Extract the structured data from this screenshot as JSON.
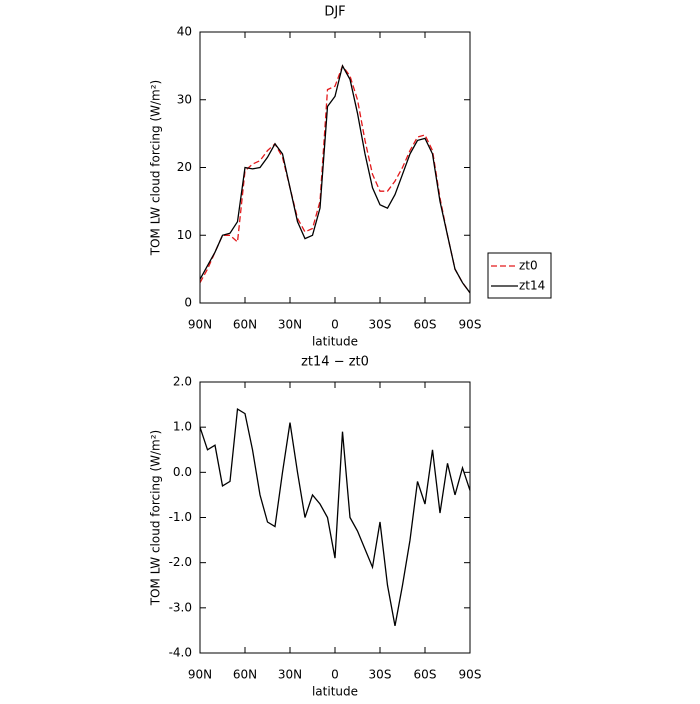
{
  "chart_data": [
    {
      "type": "line",
      "title": "DJF",
      "xlabel": "latitude",
      "ylabel": "TOM LW cloud forcing (W/m²)",
      "x": [
        90,
        85,
        80,
        75,
        70,
        65,
        60,
        55,
        50,
        45,
        40,
        35,
        30,
        25,
        20,
        15,
        10,
        5,
        0,
        -5,
        -10,
        -15,
        -20,
        -25,
        -30,
        -35,
        -40,
        -45,
        -50,
        -55,
        -60,
        -65,
        -70,
        -75,
        -80,
        -85,
        -90
      ],
      "xlim": [
        90,
        -90
      ],
      "xticks": [
        {
          "value": 90,
          "label": "90N"
        },
        {
          "value": 60,
          "label": "60N"
        },
        {
          "value": 30,
          "label": "30N"
        },
        0,
        {
          "value": -30,
          "label": "30S"
        },
        {
          "value": -60,
          "label": "60S"
        },
        {
          "value": -90,
          "label": "90S"
        }
      ],
      "ylim": [
        0,
        40
      ],
      "yticks": [
        0,
        10,
        20,
        30,
        40
      ],
      "legend": "right",
      "series": [
        {
          "name": "zt0",
          "color": "#e31a1c",
          "style": "dashed",
          "values": [
            3,
            5,
            7.5,
            10,
            10,
            9,
            19.5,
            20.5,
            21,
            22.5,
            23.5,
            21.5,
            17,
            12.5,
            10.5,
            11,
            15,
            31.5,
            32,
            35,
            33.5,
            30,
            24,
            19,
            16.5,
            16.5,
            18,
            20,
            22.5,
            24.5,
            24.8,
            22.5,
            15.5,
            10,
            5,
            3,
            1.5
          ]
        },
        {
          "name": "zt14",
          "color": "#000000",
          "style": "solid",
          "values": [
            3.5,
            5.5,
            7.5,
            10,
            10.3,
            12,
            20,
            19.8,
            20,
            21.5,
            23.5,
            22,
            17,
            12,
            9.5,
            10,
            14,
            29,
            30.5,
            35,
            33,
            28,
            22,
            17,
            14.5,
            14,
            16,
            19,
            22,
            24,
            24.3,
            22,
            15,
            10,
            5,
            3,
            1.5
          ]
        }
      ]
    },
    {
      "type": "line",
      "title": "zt14 − zt0",
      "xlabel": "latitude",
      "ylabel": "TOM LW cloud forcing (W/m²)",
      "x": [
        90,
        85,
        80,
        75,
        70,
        65,
        60,
        55,
        50,
        45,
        40,
        35,
        30,
        25,
        20,
        15,
        10,
        5,
        0,
        -5,
        -10,
        -15,
        -20,
        -25,
        -30,
        -35,
        -40,
        -45,
        -50,
        -55,
        -60,
        -65,
        -70,
        -75,
        -80,
        -85,
        -90
      ],
      "xlim": [
        90,
        -90
      ],
      "xticks": [
        {
          "value": 90,
          "label": "90N"
        },
        {
          "value": 60,
          "label": "60N"
        },
        {
          "value": 30,
          "label": "30N"
        },
        0,
        {
          "value": -30,
          "label": "30S"
        },
        {
          "value": -60,
          "label": "60S"
        },
        {
          "value": -90,
          "label": "90S"
        }
      ],
      "ylim": [
        -4,
        2
      ],
      "yticks": [
        {
          "value": -4,
          "label": "-4.0"
        },
        {
          "value": -3,
          "label": "-3.0"
        },
        {
          "value": -2,
          "label": "-2.0"
        },
        {
          "value": -1,
          "label": "-1.0"
        },
        {
          "value": 0,
          "label": "0.0"
        },
        {
          "value": 1,
          "label": "1.0"
        },
        {
          "value": 2,
          "label": "2.0"
        }
      ],
      "series": [
        {
          "color": "#000000",
          "style": "solid",
          "values": [
            1.0,
            0.5,
            0.6,
            -0.3,
            -0.2,
            1.4,
            1.3,
            0.5,
            -0.5,
            -1.1,
            -1.2,
            0.0,
            1.1,
            0.0,
            -1.0,
            -0.5,
            -0.7,
            -1.0,
            -1.9,
            0.9,
            -1.0,
            -1.3,
            -1.7,
            -2.1,
            -1.1,
            -2.5,
            -3.4,
            -2.5,
            -1.5,
            -0.2,
            -0.7,
            0.5,
            -0.9,
            0.2,
            -0.5,
            0.1,
            -0.4
          ]
        }
      ]
    }
  ]
}
